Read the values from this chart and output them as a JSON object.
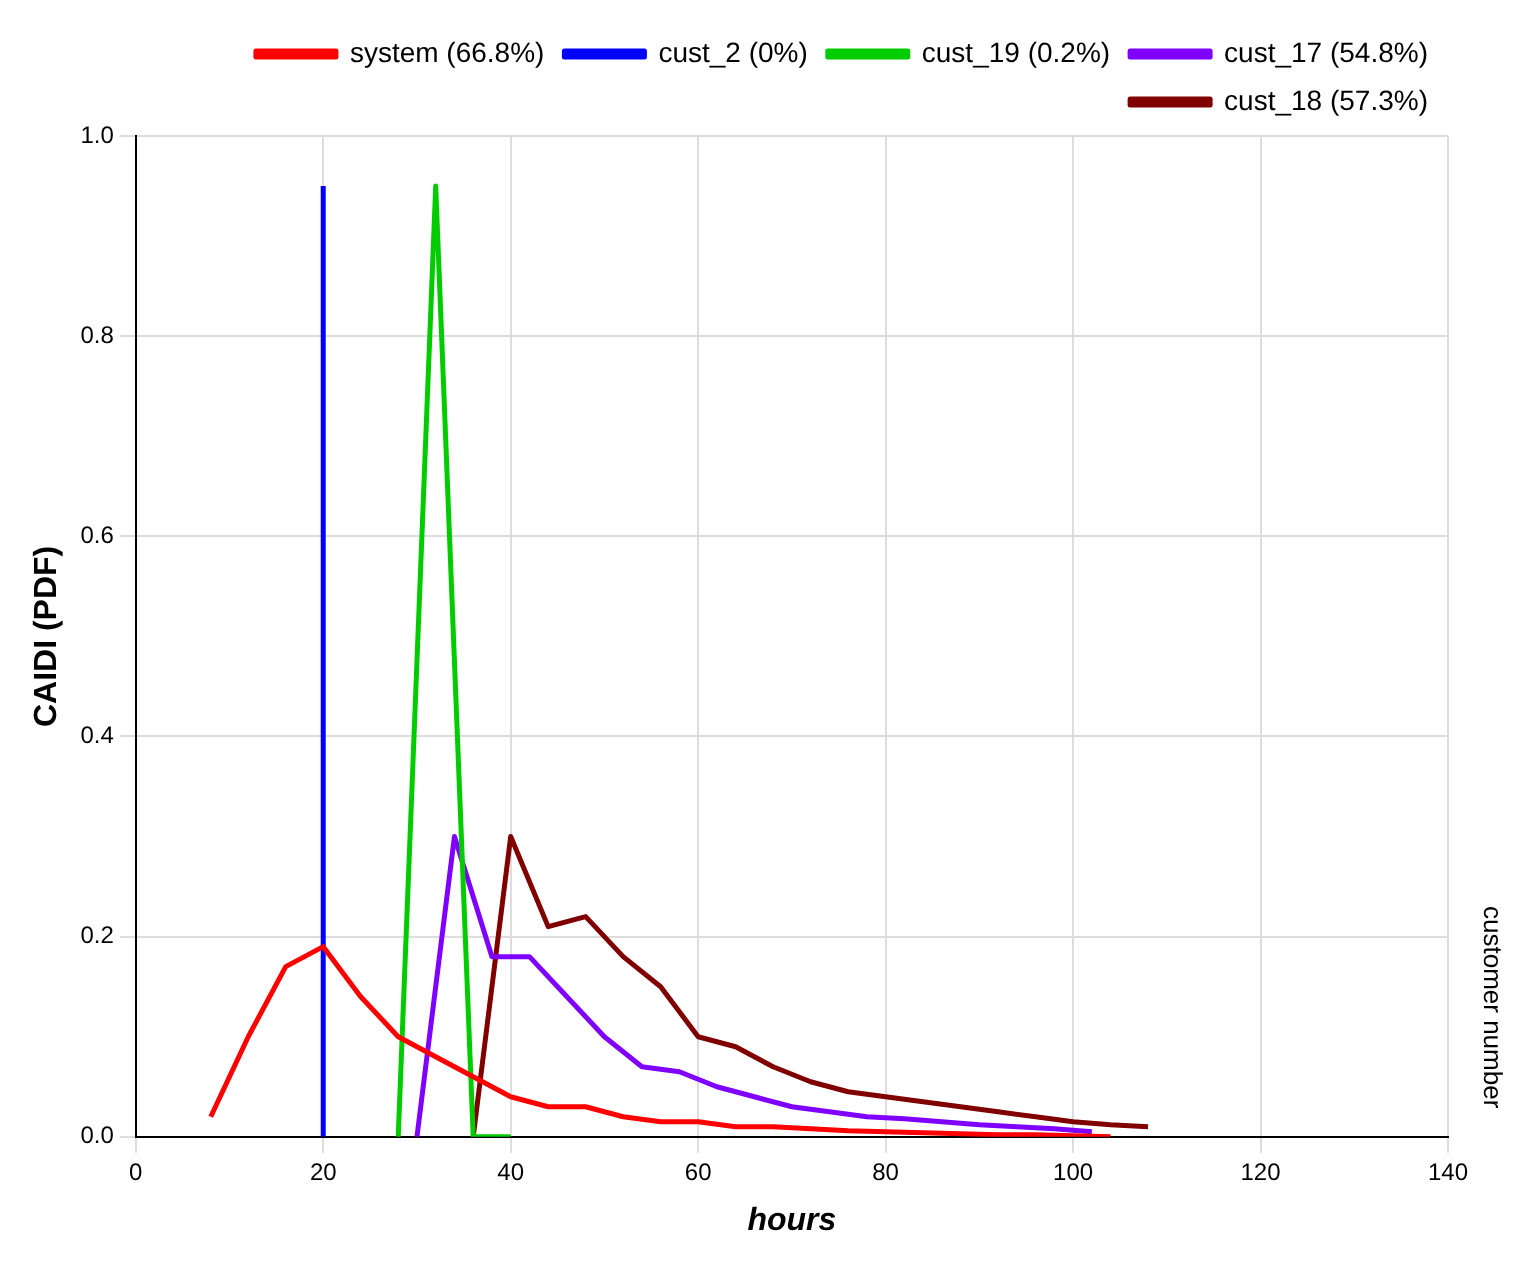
{
  "chart_data": {
    "type": "line",
    "xlabel": "hours",
    "ylabel": "CAIDI (PDF)",
    "annotations": [
      "customer number"
    ],
    "xlim": [
      0,
      140
    ],
    "xticks": [
      0,
      20,
      40,
      60,
      80,
      100,
      120,
      140
    ],
    "ylim": [
      0,
      1.0
    ],
    "yticks": [
      {
        "value": 0,
        "label": "0.0"
      },
      {
        "value": 0.2,
        "label": "0.2"
      },
      {
        "value": 0.4,
        "label": "0.4"
      },
      {
        "value": 0.6,
        "label": "0.6"
      },
      {
        "value": 0.8,
        "label": "0.8"
      },
      {
        "value": 1.0,
        "label": "1.0"
      }
    ],
    "grid": true,
    "legend": "top right",
    "marker": "none",
    "line_style": "solid",
    "series": [
      {
        "name": "system (66.8%)",
        "color": "#ff0000",
        "x": [
          8,
          12,
          16,
          20,
          24,
          28,
          32,
          36,
          40,
          44,
          48,
          52,
          56,
          60,
          64,
          68,
          72,
          76,
          80,
          84,
          88,
          92,
          96,
          100,
          104
        ],
        "values": [
          0.02,
          0.1,
          0.17,
          0.19,
          0.14,
          0.1,
          0.08,
          0.06,
          0.04,
          0.03,
          0.03,
          0.02,
          0.015,
          0.015,
          0.01,
          0.01,
          0.008,
          0.006,
          0.005,
          0.004,
          0.003,
          0.002,
          0.002,
          0.001,
          0.0
        ]
      },
      {
        "name": "cust_2 (0%)",
        "color": "#0000ff",
        "x": [
          20,
          20
        ],
        "values": [
          0,
          0.95
        ]
      },
      {
        "name": "cust_19 (0.2%)",
        "color": "#00cc00",
        "x": [
          28,
          32,
          36,
          40
        ],
        "values": [
          0,
          0.95,
          0,
          0
        ]
      },
      {
        "name": "cust_17 (54.8%)",
        "color": "#7f00ff",
        "x": [
          30,
          34,
          38,
          42,
          46,
          50,
          54,
          58,
          62,
          66,
          70,
          74,
          78,
          82,
          86,
          90,
          94,
          98,
          102
        ],
        "values": [
          0.0,
          0.3,
          0.18,
          0.18,
          0.14,
          0.1,
          0.07,
          0.065,
          0.05,
          0.04,
          0.03,
          0.025,
          0.02,
          0.018,
          0.015,
          0.012,
          0.01,
          0.008,
          0.005
        ]
      },
      {
        "name": "cust_18 (57.3%)",
        "color": "#800000",
        "x": [
          36,
          40,
          44,
          48,
          52,
          56,
          60,
          64,
          68,
          72,
          76,
          80,
          84,
          88,
          92,
          96,
          100,
          104,
          108
        ],
        "values": [
          0.0,
          0.3,
          0.21,
          0.22,
          0.18,
          0.15,
          0.1,
          0.09,
          0.07,
          0.055,
          0.045,
          0.04,
          0.035,
          0.03,
          0.025,
          0.02,
          0.015,
          0.012,
          0.01
        ]
      }
    ]
  }
}
